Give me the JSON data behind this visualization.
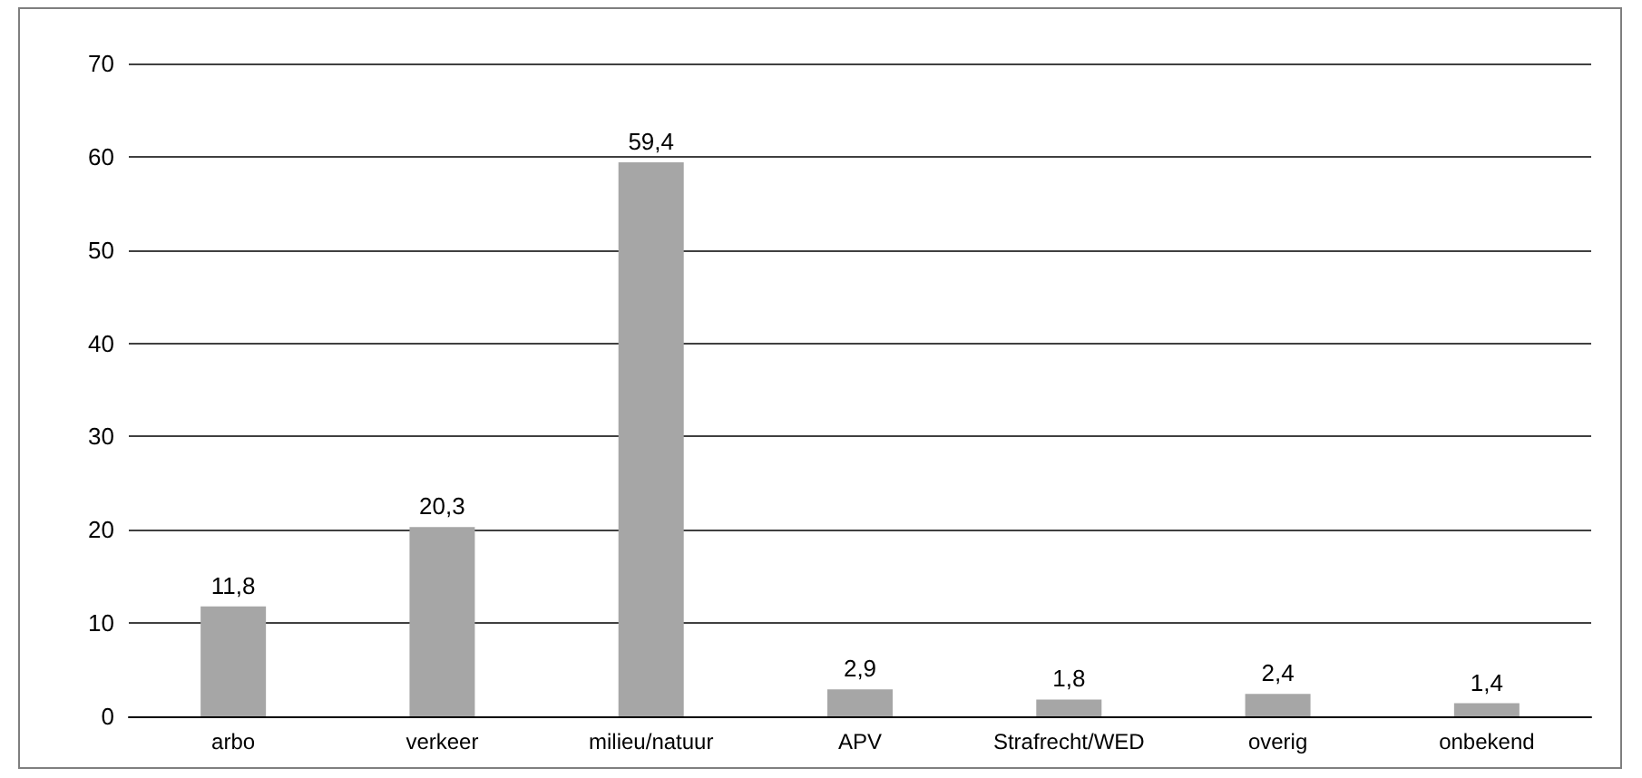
{
  "chart_data": {
    "type": "bar",
    "categories": [
      "arbo",
      "verkeer",
      "milieu/natuur",
      "APV",
      "Strafrecht/WED",
      "overig",
      "onbekend"
    ],
    "values": [
      11.8,
      20.3,
      59.4,
      2.9,
      1.8,
      2.4,
      1.4
    ],
    "value_labels": [
      "11,8",
      "20,3",
      "59,4",
      "2,9",
      "1,8",
      "2,4",
      "1,4"
    ],
    "color": "#a6a6a6",
    "ylim": [
      0,
      70
    ],
    "yticks": [
      0,
      10,
      20,
      30,
      40,
      50,
      60,
      70
    ],
    "grid": "y"
  }
}
